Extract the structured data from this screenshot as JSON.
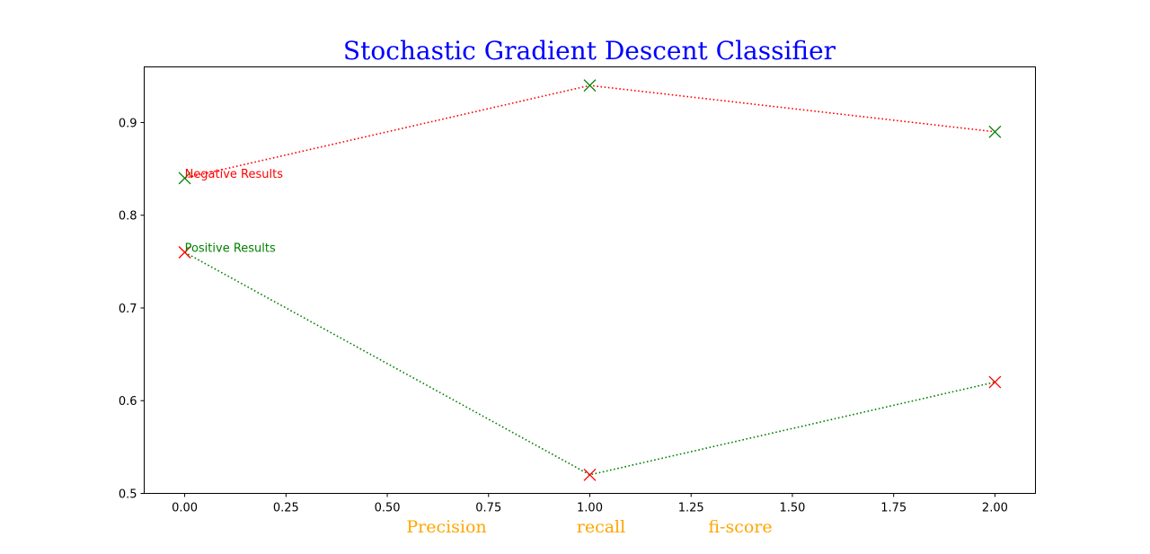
{
  "chart_data": {
    "type": "line",
    "title": "Stochastic Gradient Descent Classifier",
    "title_color": "#0000ff",
    "xlabel_segments": [
      "Precision",
      "recall",
      "fi-score"
    ],
    "xlabel_color": "#ffa500",
    "xlim": [
      -0.1,
      2.1
    ],
    "ylim": [
      0.5,
      0.96
    ],
    "xticks": [
      0.0,
      0.25,
      0.5,
      0.75,
      1.0,
      1.25,
      1.5,
      1.75,
      2.0
    ],
    "xtick_labels": [
      "0.00",
      "0.25",
      "0.50",
      "0.75",
      "1.00",
      "1.25",
      "1.50",
      "1.75",
      "2.00"
    ],
    "yticks": [
      0.5,
      0.6,
      0.7,
      0.8,
      0.9
    ],
    "ytick_labels": [
      "0.5",
      "0.6",
      "0.7",
      "0.8",
      "0.9"
    ],
    "grid": false,
    "series": [
      {
        "x": [
          0,
          1,
          2
        ],
        "values": [
          0.84,
          0.94,
          0.89
        ],
        "line_color": "#ff0000",
        "marker_color": "#008000",
        "line_style": "dotted",
        "marker": "x"
      },
      {
        "x": [
          0,
          1,
          2
        ],
        "values": [
          0.76,
          0.52,
          0.62
        ],
        "line_color": "#008000",
        "marker_color": "#ff0000",
        "line_style": "dotted",
        "marker": "x"
      }
    ],
    "annotations": [
      {
        "text": "Negative Results",
        "x": 0,
        "y": 0.84,
        "color": "#ff0000"
      },
      {
        "text": "Positive Results",
        "x": 0,
        "y": 0.76,
        "color": "#008000"
      }
    ]
  }
}
